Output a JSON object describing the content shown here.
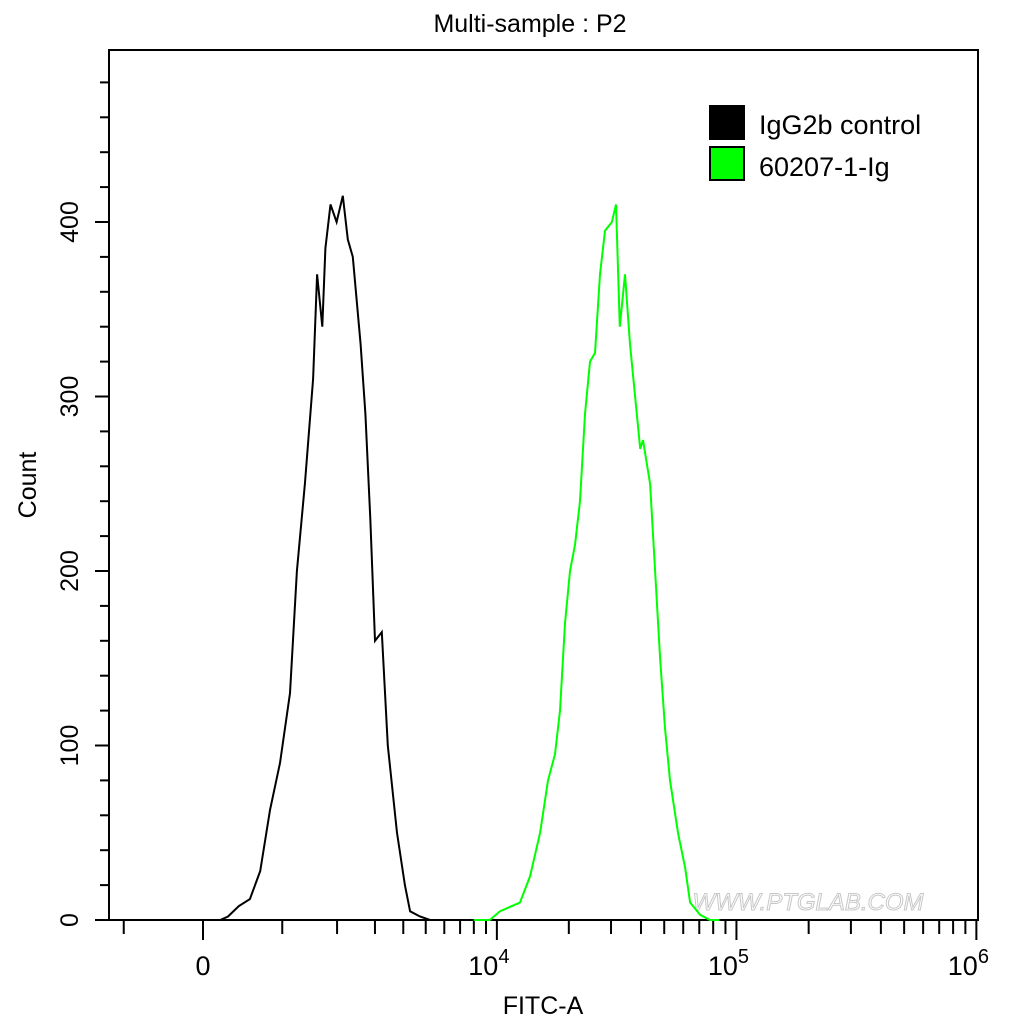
{
  "chart_data": {
    "type": "line",
    "title": "Multi-sample : P2",
    "xlabel": "FITC-A",
    "ylabel": "Count",
    "x_scale": "biexponential",
    "xlim": [
      -1250,
      1020000
    ],
    "ylim": [
      0,
      499
    ],
    "x_ticks": [
      {
        "value": 0,
        "base": "0",
        "exp": ""
      },
      {
        "value": 10000,
        "base": "10",
        "exp": "4"
      },
      {
        "value": 100000,
        "base": "10",
        "exp": "5"
      },
      {
        "value": 1000000,
        "base": "10",
        "exp": "6"
      }
    ],
    "y_ticks": [
      0,
      100,
      200,
      300,
      400
    ],
    "grid": false,
    "legend": {
      "placement": "top-right"
    },
    "watermark": "WWW.PTGLAB.COM",
    "series": [
      {
        "name": "IgG2b control",
        "color": "#000000",
        "x": [
          0,
          200,
          290,
          420,
          557,
          690,
          823,
          966,
          1118,
          1230,
          1366,
          1512,
          1588,
          1688,
          1751,
          1857,
          1989,
          2131,
          2251,
          2375,
          2583,
          2715,
          2858,
          3002,
          3217,
          3421,
          3755,
          4066,
          4282,
          4724,
          5214,
          6000
        ],
        "y": [
          0,
          0,
          2,
          8,
          12,
          28,
          63,
          90,
          130,
          200,
          250,
          310,
          370,
          340,
          385,
          410,
          400,
          415,
          390,
          380,
          330,
          290,
          230,
          160,
          165,
          100,
          50,
          20,
          5,
          2,
          0,
          0
        ]
      },
      {
        "name": "60207-1-Ig",
        "color": "#00ff00",
        "x": [
          8000,
          9341,
          10298,
          12498,
          13766,
          15165,
          16373,
          17509,
          18370,
          19280,
          20236,
          21229,
          22270,
          23370,
          24518,
          25726,
          26982,
          28309,
          30259,
          31455,
          32650,
          34325,
          36000,
          37794,
          39707,
          40784,
          43654,
          45807,
          48079,
          50352,
          52863,
          57049,
          61116,
          64106,
          70564,
          77620,
          85000
        ],
        "y": [
          0,
          0,
          5,
          10,
          25,
          50,
          80,
          95,
          120,
          170,
          200,
          215,
          240,
          290,
          320,
          325,
          370,
          395,
          400,
          410,
          340,
          370,
          330,
          300,
          270,
          275,
          250,
          200,
          150,
          110,
          80,
          50,
          30,
          10,
          3,
          0,
          0
        ]
      }
    ]
  }
}
